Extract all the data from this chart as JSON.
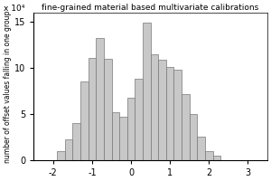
{
  "title": "fine-grained material based multivariate calibrations",
  "ylabel": "number of offset values falling in one group",
  "xlim": [
    -2.5,
    3.5
  ],
  "ylim": [
    0,
    160000
  ],
  "xticks": [
    -2,
    -1,
    0,
    1,
    2,
    3
  ],
  "yticks": [
    0,
    50000,
    100000,
    150000
  ],
  "ytick_labels": [
    "0",
    "5",
    "10",
    "15"
  ],
  "bar_color": "#c8c8c8",
  "bar_edge_color": "#777777",
  "bar_lefts": [
    -2.1,
    -1.9,
    -1.7,
    -1.5,
    -1.3,
    -1.1,
    -0.9,
    -0.7,
    -0.5,
    -0.3,
    -0.1,
    0.1,
    0.3,
    0.5,
    0.7,
    0.9,
    1.1,
    1.3,
    1.5,
    1.7,
    1.9,
    2.1,
    2.3
  ],
  "bar_heights": [
    0,
    10000,
    22000,
    40000,
    85000,
    111000,
    132000,
    110000,
    52000,
    47000,
    68000,
    88000,
    149000,
    115000,
    109000,
    101000,
    98000,
    72000,
    50000,
    25000,
    10000,
    5000,
    0
  ],
  "bar_width": 0.2,
  "exponent_label": "x 10⁴",
  "title_fontsize": 6.5,
  "ylabel_fontsize": 5.5,
  "tick_fontsize": 7,
  "exponent_fontsize": 6.5
}
